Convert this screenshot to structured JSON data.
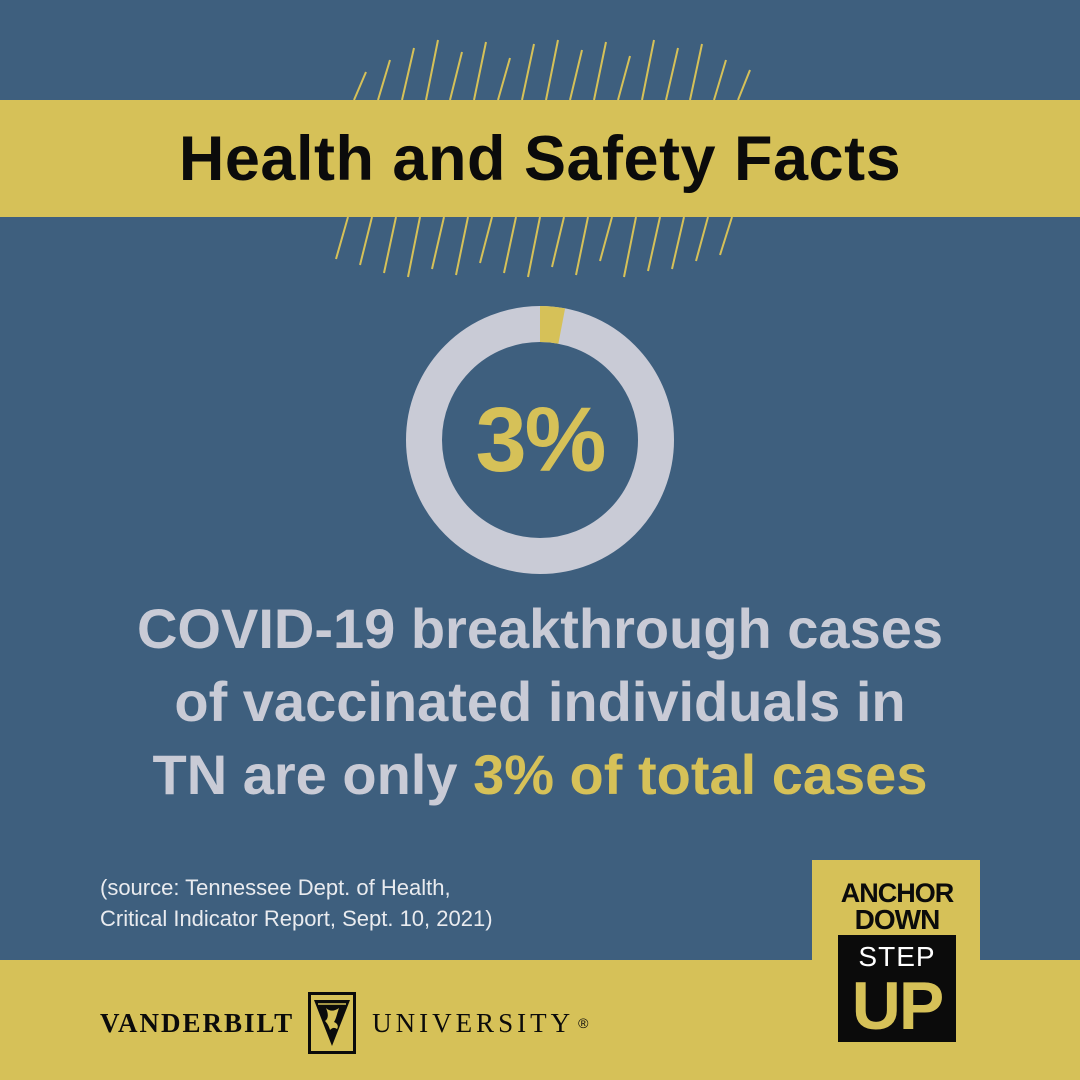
{
  "header": {
    "title": "Health and Safety Facts"
  },
  "stat": {
    "percent_label": "3%",
    "percent_value": 3
  },
  "headline": {
    "line1": "COVID-19 breakthrough cases",
    "line2": "of vaccinated individuals in",
    "line3_prefix": "TN are only ",
    "line3_accent": "3% of total cases"
  },
  "source": {
    "line1": "(source: Tennessee Dept. of Health,",
    "line2": "Critical Indicator Report, Sept. 10, 2021)"
  },
  "footer": {
    "logo_left": "VANDERBILT",
    "logo_right": "UNIVERSITY",
    "logo_reg": "®"
  },
  "badge": {
    "line1": "ANCHOR",
    "line2": "DOWN",
    "line3": "STEP",
    "line4": "UP"
  },
  "colors": {
    "background": "#3e5f7e",
    "accent_gold": "#d6c158",
    "ring_gray": "#c9cbd6",
    "text_dark": "#0b0b0b"
  }
}
